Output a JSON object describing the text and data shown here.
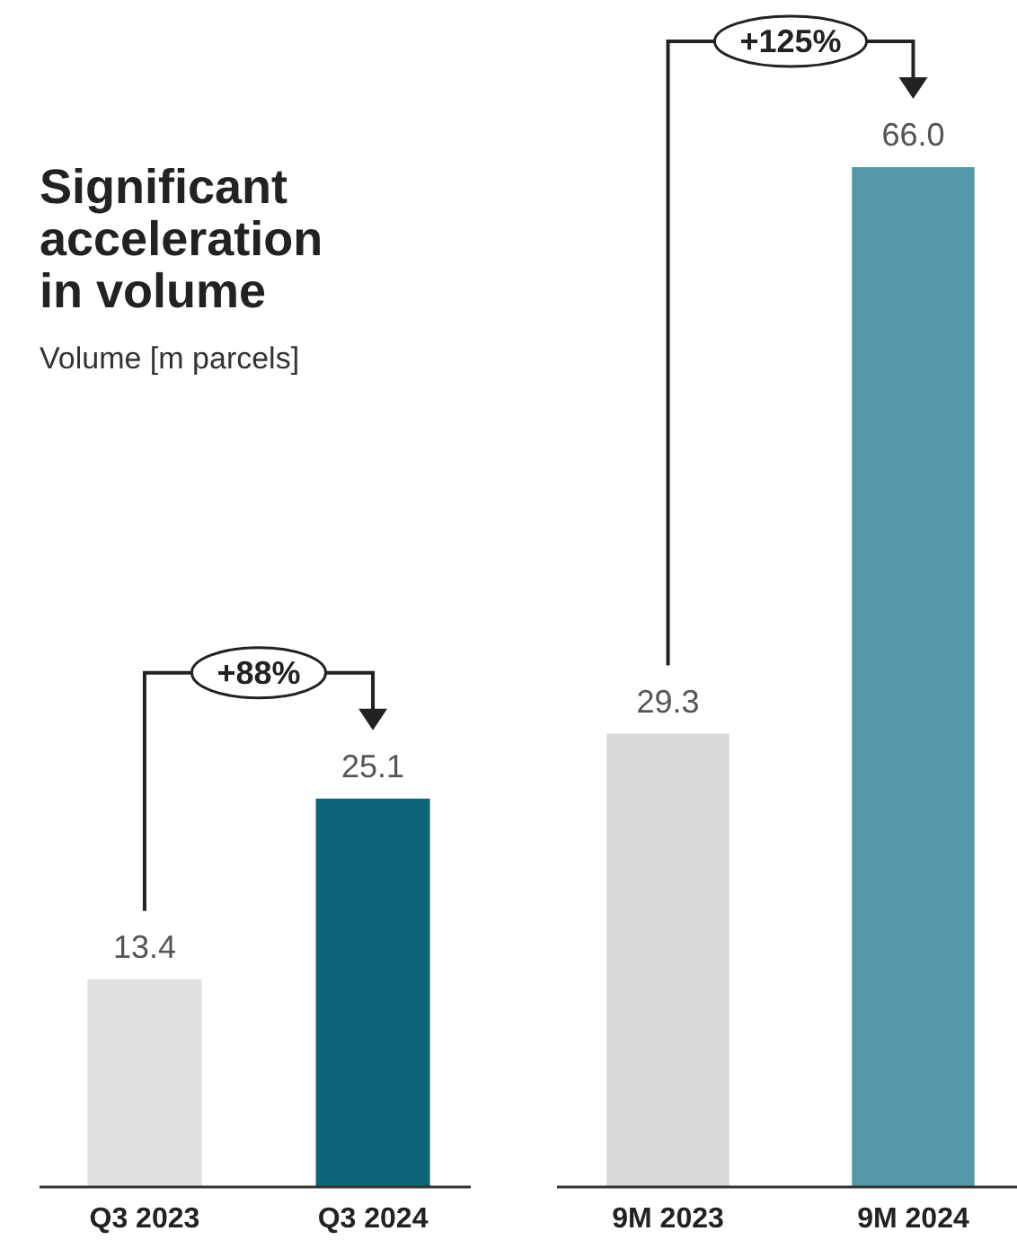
{
  "chart_data": [
    {
      "type": "bar",
      "title": "Significant acceleration in volume",
      "subtitle": "Volume [m parcels]",
      "categories": [
        "Q3 2023",
        "Q3 2024"
      ],
      "values": [
        13.4,
        25.1
      ],
      "value_labels": [
        "13.4",
        "25.1"
      ],
      "colors": [
        "#e1e1e1",
        "#0e6577"
      ],
      "annotations": [
        "+88%"
      ]
    },
    {
      "type": "bar",
      "categories": [
        "9M 2023",
        "9M 2024"
      ],
      "values": [
        29.3,
        66.0
      ],
      "value_labels": [
        "29.3",
        "66.0"
      ],
      "colors": [
        "#d8d9da",
        "#5399a8"
      ],
      "annotations": [
        "+125%"
      ]
    }
  ]
}
